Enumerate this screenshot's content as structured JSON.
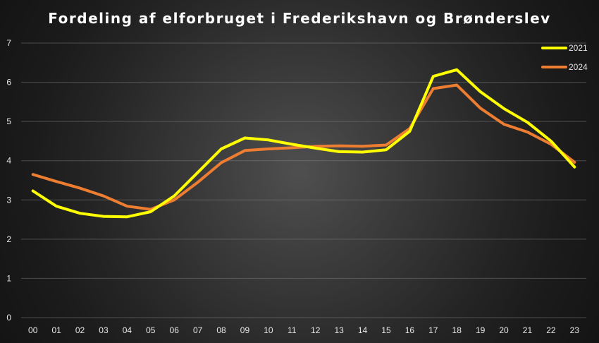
{
  "chart_data": {
    "type": "line",
    "title": "Fordeling af elforbruget i Frederikshavn og Brønderslev",
    "xlabel": "",
    "ylabel": "",
    "categories": [
      "00",
      "01",
      "02",
      "03",
      "04",
      "05",
      "06",
      "07",
      "08",
      "09",
      "10",
      "11",
      "12",
      "13",
      "14",
      "15",
      "16",
      "17",
      "18",
      "19",
      "20",
      "21",
      "22",
      "23"
    ],
    "ylim": [
      0,
      7
    ],
    "yticks": [
      0,
      1,
      2,
      3,
      4,
      5,
      6,
      7
    ],
    "grid": true,
    "legend_position": "top-right",
    "series": [
      {
        "name": "2021",
        "color": "#ffff00",
        "values": [
          3.23,
          2.84,
          2.66,
          2.58,
          2.57,
          2.7,
          3.1,
          3.7,
          4.3,
          4.58,
          4.53,
          4.42,
          4.32,
          4.23,
          4.22,
          4.28,
          4.75,
          6.15,
          6.32,
          5.76,
          5.33,
          4.98,
          4.5,
          3.84
        ]
      },
      {
        "name": "2024",
        "color": "#ed7d31",
        "values": [
          3.65,
          3.47,
          3.3,
          3.1,
          2.84,
          2.76,
          3.0,
          3.45,
          3.95,
          4.26,
          4.3,
          4.33,
          4.37,
          4.38,
          4.37,
          4.4,
          4.82,
          5.84,
          5.93,
          5.34,
          4.93,
          4.73,
          4.42,
          3.96
        ]
      }
    ]
  }
}
